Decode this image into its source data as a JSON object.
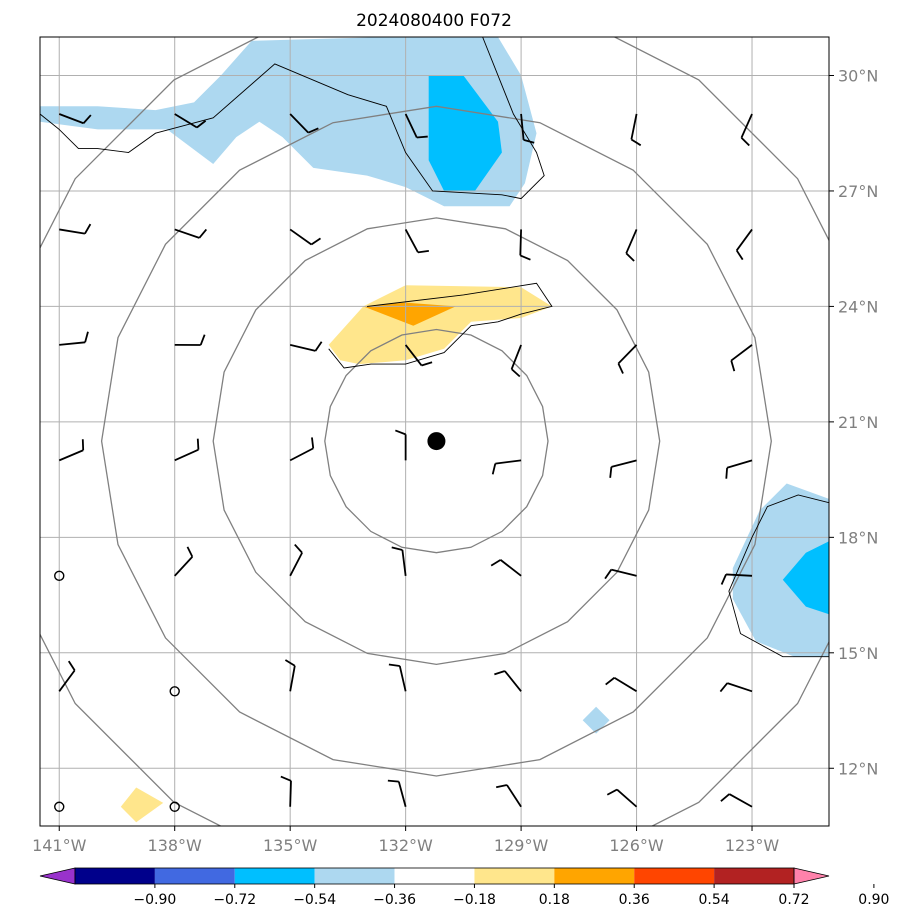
{
  "chart_data": {
    "type": "map-contour",
    "title": "2024080400 F072",
    "xlim": [
      -141.5,
      -121
    ],
    "ylim": [
      10.5,
      31
    ],
    "x_ticks": [
      {
        "value": -141,
        "label": "141°W"
      },
      {
        "value": -138,
        "label": "138°W"
      },
      {
        "value": -135,
        "label": "135°W"
      },
      {
        "value": -132,
        "label": "132°W"
      },
      {
        "value": -129,
        "label": "129°W"
      },
      {
        "value": -126,
        "label": "126°W"
      },
      {
        "value": -123,
        "label": "123°W"
      }
    ],
    "y_ticks": [
      {
        "value": 12,
        "label": "12°N"
      },
      {
        "value": 15,
        "label": "15°N"
      },
      {
        "value": 18,
        "label": "18°N"
      },
      {
        "value": 21,
        "label": "21°N"
      },
      {
        "value": 24,
        "label": "24°N"
      },
      {
        "value": 27,
        "label": "27°N"
      },
      {
        "value": 30,
        "label": "30°N"
      }
    ],
    "grid": true,
    "center_point": {
      "lon": -131.2,
      "lat": 20.5
    },
    "range_rings_deg": [
      2.9,
      5.8,
      8.7,
      11.6
    ],
    "colorbar": {
      "levels": [
        "−0.90",
        "−0.72",
        "−0.54",
        "−0.36",
        "−0.18",
        "0.18",
        "0.36",
        "0.54",
        "0.72",
        "0.90"
      ],
      "colors": [
        "#9932cc",
        "#00008b",
        "#4169e1",
        "#00bfff",
        "#add8f0",
        "#ffffff",
        "#ffe68c",
        "#ffa500",
        "#ff4500",
        "#b22222",
        "#ff82ab"
      ],
      "extend": "both"
    },
    "shaded_regions": [
      {
        "level": "-0.36 to -0.18",
        "color": "#add8f0",
        "points": [
          [
            -141.5,
            29.2
          ],
          [
            -140,
            29.2
          ],
          [
            -138.5,
            29.1
          ],
          [
            -137.5,
            29.3
          ],
          [
            -136.8,
            30
          ],
          [
            -136,
            30.9
          ],
          [
            -132.5,
            31
          ],
          [
            -129.6,
            31
          ],
          [
            -129,
            30
          ],
          [
            -128.6,
            28.5
          ],
          [
            -128.9,
            27.2
          ],
          [
            -129.3,
            26.6
          ],
          [
            -131,
            26.6
          ],
          [
            -132,
            27.1
          ],
          [
            -133,
            27.4
          ],
          [
            -134.4,
            27.6
          ],
          [
            -135.2,
            28.4
          ],
          [
            -135.8,
            28.8
          ],
          [
            -136.4,
            28.4
          ],
          [
            -137,
            27.7
          ],
          [
            -138.2,
            28.6
          ],
          [
            -140,
            28.6
          ],
          [
            -141.5,
            28.8
          ]
        ]
      },
      {
        "level": "-0.54 to -0.36",
        "color": "#00bfff",
        "points": [
          [
            -131.4,
            30
          ],
          [
            -130.5,
            30
          ],
          [
            -129.6,
            28.8
          ],
          [
            -129.5,
            28
          ],
          [
            -130.2,
            27
          ],
          [
            -131,
            27
          ],
          [
            -131.4,
            27.8
          ]
        ]
      },
      {
        "level": "-0.36 to -0.18",
        "color": "#add8f0",
        "points": [
          [
            -121,
            19
          ],
          [
            -122.1,
            19.4
          ],
          [
            -122.8,
            18.7
          ],
          [
            -123.5,
            17.2
          ],
          [
            -123.5,
            16.4
          ],
          [
            -122.9,
            15.3
          ],
          [
            -121.9,
            14.9
          ],
          [
            -121,
            14.9
          ]
        ]
      },
      {
        "level": "-0.54 to -0.36",
        "color": "#00bfff",
        "points": [
          [
            -121,
            17.9
          ],
          [
            -121.6,
            17.6
          ],
          [
            -122.2,
            16.9
          ],
          [
            -121.6,
            16.2
          ],
          [
            -121,
            16
          ]
        ]
      },
      {
        "level": "-0.36 to -0.18",
        "color": "#add8f0",
        "points": [
          [
            -127.05,
            13.6
          ],
          [
            -126.7,
            13.25
          ],
          [
            -127.05,
            12.9
          ],
          [
            -127.4,
            13.25
          ]
        ]
      },
      {
        "level": "0.18 to 0.36",
        "color": "#ffe68c",
        "points": [
          [
            -133.1,
            24
          ],
          [
            -132,
            24.55
          ],
          [
            -129,
            24.5
          ],
          [
            -128.2,
            24
          ],
          [
            -129,
            23.7
          ],
          [
            -130.3,
            23.6
          ],
          [
            -131,
            22.9
          ],
          [
            -132,
            22.6
          ],
          [
            -133.2,
            22.5
          ],
          [
            -133.7,
            22.6
          ],
          [
            -134,
            23
          ]
        ]
      },
      {
        "level": "0.36 to 0.54",
        "color": "#ffa500",
        "points": [
          [
            -133.1,
            24
          ],
          [
            -132,
            24.1
          ],
          [
            -130.7,
            24
          ],
          [
            -131.8,
            23.5
          ]
        ]
      },
      {
        "level": "0.18 to 0.36",
        "color": "#ffe68c",
        "points": [
          [
            -139.4,
            11
          ],
          [
            -139,
            11.5
          ],
          [
            -138.3,
            11.1
          ],
          [
            -139,
            10.6
          ]
        ]
      }
    ],
    "contour_lines": [
      [
        [
          -141.5,
          29
        ],
        [
          -141,
          28.6
        ],
        [
          -140.5,
          28.1
        ],
        [
          -140,
          28.1
        ],
        [
          -139.2,
          28
        ],
        [
          -138.5,
          28.5
        ],
        [
          -137,
          28.9
        ],
        [
          -135.4,
          30.3
        ],
        [
          -133.5,
          29.5
        ],
        [
          -132.5,
          29.2
        ],
        [
          -132,
          28
        ],
        [
          -131.3,
          27
        ],
        [
          -129.5,
          26.9
        ],
        [
          -129,
          26.8
        ],
        [
          -128.4,
          27.4
        ],
        [
          -128.6,
          28
        ],
        [
          -129.2,
          29
        ],
        [
          -130,
          31
        ]
      ],
      [
        [
          -133,
          24
        ],
        [
          -130.5,
          24.3
        ],
        [
          -128.6,
          24.6
        ],
        [
          -128.2,
          24
        ],
        [
          -129,
          23.8
        ],
        [
          -129.6,
          23.6
        ],
        [
          -130.3,
          23.5
        ],
        [
          -131,
          22.8
        ],
        [
          -132,
          22.5
        ],
        [
          -132.9,
          22.5
        ],
        [
          -133.6,
          22.4
        ],
        [
          -134,
          22.9
        ]
      ],
      [
        [
          -121,
          18.9
        ],
        [
          -121.8,
          19.1
        ],
        [
          -122.6,
          18.8
        ],
        [
          -123,
          18
        ],
        [
          -123.6,
          16.6
        ],
        [
          -123.3,
          15.5
        ],
        [
          -122.2,
          14.9
        ],
        [
          -121,
          14.9
        ]
      ]
    ],
    "wind_barbs": {
      "lons": [
        -141,
        -138,
        -135,
        -132,
        -129,
        -126,
        -123
      ],
      "lats": [
        11,
        14,
        17,
        20,
        23,
        26,
        29
      ]
    }
  }
}
